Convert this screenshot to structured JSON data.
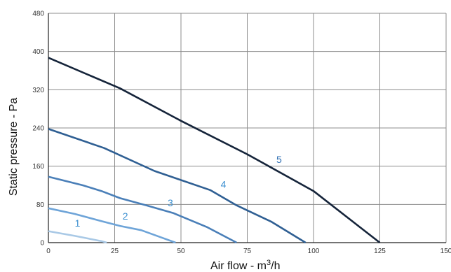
{
  "chart_data": {
    "type": "line",
    "title": "",
    "xlabel_main": "Air flow - m",
    "xlabel_sup": "3",
    "xlabel_tail": "/h",
    "ylabel": "Static pressure - Pa",
    "xlim": [
      0,
      150
    ],
    "ylim": [
      0,
      480
    ],
    "xticks": [
      "0",
      "25",
      "50",
      "75",
      "100",
      "125",
      "150"
    ],
    "yticks": [
      "0",
      "80",
      "160",
      "240",
      "320",
      "400",
      "480"
    ],
    "grid": true,
    "series": [
      {
        "name": "1",
        "color": "#a9c9e6",
        "label_at": [
          11,
          34
        ],
        "x": [
          0,
          10,
          20,
          22
        ],
        "y": [
          24,
          14,
          3,
          0
        ]
      },
      {
        "name": "2",
        "color": "#6ea4d8",
        "label_at": [
          29,
          48
        ],
        "x": [
          0,
          10,
          20,
          27,
          35,
          42,
          48
        ],
        "y": [
          72,
          60,
          45,
          35,
          26,
          12,
          0
        ]
      },
      {
        "name": "3",
        "color": "#4a7fb8",
        "label_at": [
          46,
          76
        ],
        "x": [
          0,
          13,
          20,
          27,
          37,
          47,
          60,
          71
        ],
        "y": [
          138,
          120,
          108,
          93,
          78,
          62,
          32,
          0
        ]
      },
      {
        "name": "4",
        "color": "#2f5f93",
        "label_at": [
          66,
          115
        ],
        "x": [
          0,
          21,
          40,
          61,
          71,
          84,
          97
        ],
        "y": [
          238,
          198,
          150,
          110,
          78,
          44,
          0
        ]
      },
      {
        "name": "5",
        "color": "#15243a",
        "label_at": [
          87,
          167
        ],
        "x": [
          0,
          27,
          50,
          75,
          100,
          125
        ],
        "y": [
          387,
          323,
          255,
          185,
          108,
          0
        ]
      }
    ]
  }
}
